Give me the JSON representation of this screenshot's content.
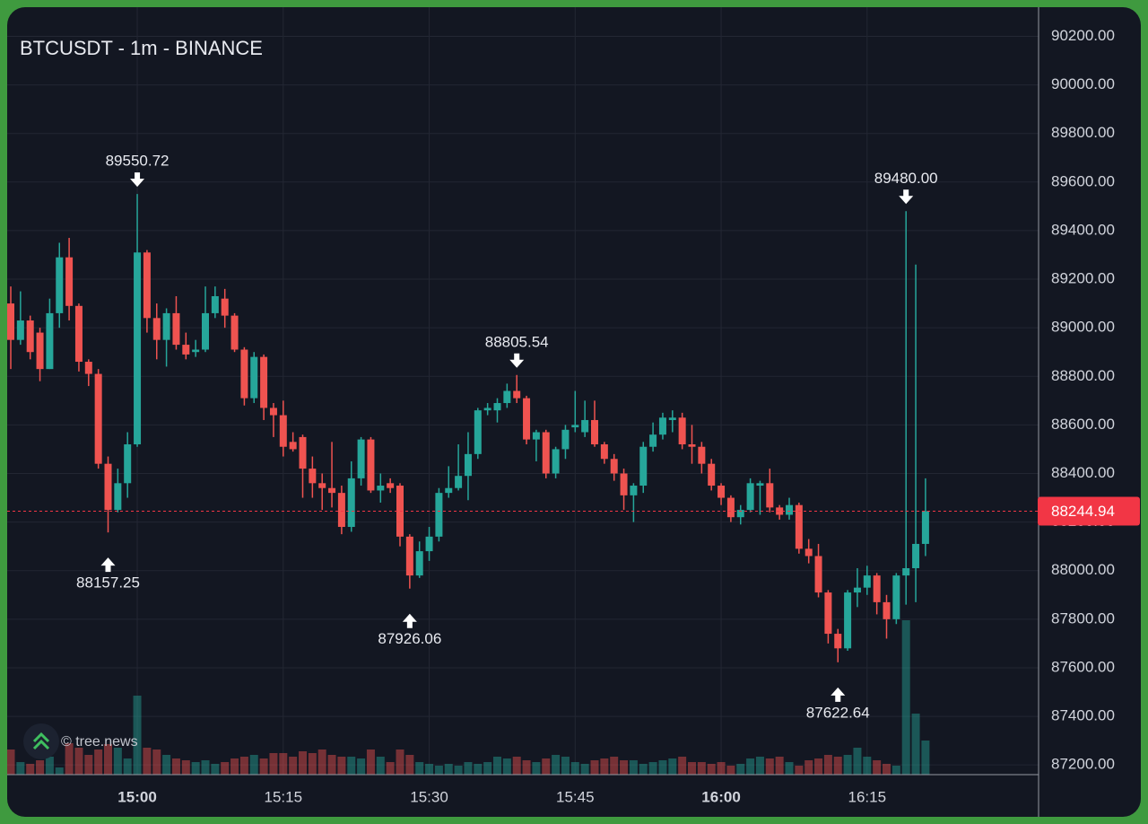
{
  "chart_data": {
    "type": "candlestick",
    "title": "BTCUSDT - 1m - BINANCE",
    "watermark": "© tree.news",
    "x": [
      "14:47",
      "14:48",
      "14:49",
      "14:50",
      "14:51",
      "14:52",
      "14:53",
      "14:54",
      "14:55",
      "14:56",
      "14:57",
      "14:58",
      "14:59",
      "15:00",
      "15:01",
      "15:02",
      "15:03",
      "15:04",
      "15:05",
      "15:06",
      "15:07",
      "15:08",
      "15:09",
      "15:10",
      "15:11",
      "15:12",
      "15:13",
      "15:14",
      "15:15",
      "15:16",
      "15:17",
      "15:18",
      "15:19",
      "15:20",
      "15:21",
      "15:22",
      "15:23",
      "15:24",
      "15:25",
      "15:26",
      "15:27",
      "15:28",
      "15:29",
      "15:30",
      "15:31",
      "15:32",
      "15:33",
      "15:34",
      "15:35",
      "15:36",
      "15:37",
      "15:38",
      "15:39",
      "15:40",
      "15:41",
      "15:42",
      "15:43",
      "15:44",
      "15:45",
      "15:46",
      "15:47",
      "15:48",
      "15:49",
      "15:50",
      "15:51",
      "15:52",
      "15:53",
      "15:54",
      "15:55",
      "15:56",
      "15:57",
      "15:58",
      "15:59",
      "16:00",
      "16:01",
      "16:02",
      "16:03",
      "16:04",
      "16:05",
      "16:06",
      "16:07",
      "16:08",
      "16:09",
      "16:10",
      "16:11",
      "16:12",
      "16:13",
      "16:14",
      "16:15",
      "16:16",
      "16:17",
      "16:18",
      "16:19",
      "16:20",
      "16:21"
    ],
    "open": [
      89100,
      88950,
      89030,
      88980,
      88830,
      89060,
      89290,
      89090,
      88860,
      88810,
      88440,
      88250,
      88360,
      88520,
      89310,
      89040,
      88950,
      89060,
      88930,
      88900,
      88910,
      89060,
      89120,
      89050,
      88910,
      88710,
      88880,
      88670,
      88640,
      88530,
      88550,
      88420,
      88360,
      88340,
      88320,
      88180,
      88380,
      88540,
      88330,
      88360,
      88350,
      88140,
      87980,
      88080,
      88140,
      88320,
      88340,
      88390,
      88480,
      88660,
      88660,
      88690,
      88740,
      88710,
      88540,
      88570,
      88400,
      88500,
      88590,
      88570,
      88620,
      88520,
      88460,
      88400,
      88310,
      88350,
      88510,
      88560,
      88620,
      88630,
      88520,
      88510,
      88440,
      88350,
      88300,
      88220,
      88250,
      88350,
      88360,
      88260,
      88230,
      88270,
      88090,
      88060,
      87910,
      87740,
      87680,
      87910,
      87930,
      87980,
      87870,
      87800,
      87980,
      88010,
      88110
    ],
    "high": [
      89170,
      89150,
      89050,
      89000,
      89120,
      89350,
      89370,
      89100,
      88870,
      88830,
      88470,
      88420,
      88570,
      89550.72,
      89320,
      89100,
      89080,
      89130,
      88980,
      88950,
      89170,
      89170,
      89160,
      89060,
      88920,
      88900,
      88890,
      88690,
      88700,
      88570,
      88560,
      88470,
      88400,
      88530,
      88350,
      88450,
      88550,
      88550,
      88400,
      88380,
      88360,
      88150,
      88120,
      88180,
      88340,
      88430,
      88520,
      88570,
      88670,
      88690,
      88710,
      88770,
      88805.54,
      88720,
      88580,
      88580,
      88510,
      88600,
      88740,
      88700,
      88700,
      88530,
      88480,
      88420,
      88360,
      88530,
      88610,
      88650,
      88660,
      88650,
      88600,
      88530,
      88460,
      88360,
      88310,
      88270,
      88380,
      88370,
      88420,
      88270,
      88300,
      88280,
      88130,
      88110,
      87920,
      87760,
      87920,
      88010,
      88020,
      87990,
      87900,
      87990,
      89480,
      89260,
      88380
    ],
    "low": [
      88830,
      88930,
      88870,
      88780,
      88830,
      89000,
      89030,
      88820,
      88760,
      88420,
      88157.25,
      88240,
      88300,
      88510,
      88980,
      88870,
      88840,
      88910,
      88870,
      88880,
      88900,
      89040,
      89000,
      88900,
      88680,
      88690,
      88620,
      88550,
      88470,
      88490,
      88300,
      88300,
      88250,
      88260,
      88150,
      88160,
      88350,
      88320,
      88280,
      88320,
      88100,
      87926.06,
      87970,
      88040,
      88120,
      88300,
      88330,
      88290,
      88460,
      88640,
      88610,
      88670,
      88690,
      88520,
      88450,
      88380,
      88380,
      88460,
      88570,
      88550,
      88510,
      88440,
      88370,
      88250,
      88200,
      88320,
      88490,
      88540,
      88570,
      88500,
      88440,
      88400,
      88330,
      88270,
      88200,
      88190,
      88240,
      88230,
      88240,
      88210,
      88210,
      88070,
      88030,
      87890,
      87700,
      87622.64,
      87670,
      87850,
      87900,
      87820,
      87720,
      87780,
      87860,
      87870,
      88060
    ],
    "close": [
      88950,
      89030,
      88900,
      88830,
      89060,
      89290,
      89090,
      88860,
      88810,
      88440,
      88250,
      88360,
      88520,
      89310,
      89040,
      88950,
      89060,
      88930,
      88890,
      88910,
      89060,
      89130,
      89050,
      88910,
      88710,
      88880,
      88670,
      88640,
      88510,
      88500,
      88420,
      88360,
      88340,
      88320,
      88180,
      88380,
      88540,
      88330,
      88350,
      88340,
      88140,
      87980,
      88080,
      88140,
      88320,
      88340,
      88390,
      88480,
      88660,
      88670,
      88690,
      88740,
      88710,
      88540,
      88570,
      88400,
      88500,
      88580,
      88600,
      88620,
      88520,
      88460,
      88400,
      88310,
      88350,
      88510,
      88560,
      88630,
      88630,
      88520,
      88510,
      88440,
      88350,
      88300,
      88220,
      88250,
      88360,
      88360,
      88260,
      88230,
      88270,
      88090,
      88060,
      87910,
      87740,
      87680,
      87910,
      87930,
      87980,
      87870,
      87800,
      87980,
      88010,
      88110,
      88244.94
    ],
    "volume": [
      28,
      14,
      12,
      16,
      20,
      8,
      35,
      30,
      22,
      28,
      34,
      30,
      18,
      88,
      30,
      28,
      22,
      18,
      16,
      14,
      16,
      12,
      14,
      18,
      20,
      22,
      18,
      24,
      24,
      20,
      26,
      24,
      28,
      22,
      20,
      20,
      18,
      28,
      20,
      14,
      28,
      22,
      14,
      12,
      10,
      12,
      10,
      14,
      12,
      14,
      20,
      18,
      20,
      16,
      14,
      18,
      22,
      20,
      14,
      12,
      16,
      18,
      20,
      16,
      16,
      12,
      14,
      16,
      18,
      20,
      14,
      14,
      12,
      14,
      10,
      12,
      18,
      20,
      18,
      20,
      14,
      10,
      16,
      18,
      22,
      20,
      22,
      30,
      20,
      16,
      12,
      10,
      172,
      68,
      38
    ],
    "up_color": "#26a69a",
    "down_color": "#ef5350",
    "price_line_color": "#f23645",
    "ylim": [
      87160,
      90320
    ],
    "yticks": [
      {
        "value": 87200,
        "label": "87200.00"
      },
      {
        "value": 87400,
        "label": "87400.00"
      },
      {
        "value": 87600,
        "label": "87600.00"
      },
      {
        "value": 87800,
        "label": "87800.00"
      },
      {
        "value": 88000,
        "label": "88000.00"
      },
      {
        "value": 88200,
        "label": "88200.00"
      },
      {
        "value": 88400,
        "label": "88400.00"
      },
      {
        "value": 88600,
        "label": "88600.00"
      },
      {
        "value": 88800,
        "label": "88800.00"
      },
      {
        "value": 89000,
        "label": "89000.00"
      },
      {
        "value": 89200,
        "label": "89200.00"
      },
      {
        "value": 89400,
        "label": "89400.00"
      },
      {
        "value": 89600,
        "label": "89600.00"
      },
      {
        "value": 89800,
        "label": "89800.00"
      },
      {
        "value": 90000,
        "label": "90000.00"
      },
      {
        "value": 90200,
        "label": "90200.00"
      }
    ],
    "xticks": [
      "15:00",
      "15:15",
      "15:30",
      "15:45",
      "16:00",
      "16:15"
    ],
    "grid": true,
    "annotations": [
      {
        "x": "15:00",
        "label": "89550.72",
        "at": "high"
      },
      {
        "x": "14:57",
        "label": "88157.25",
        "at": "low"
      },
      {
        "x": "15:39",
        "label": "88805.54",
        "at": "high"
      },
      {
        "x": "15:28",
        "label": "87926.06",
        "at": "low"
      },
      {
        "x": "16:19",
        "label": "89480.00",
        "at": "high"
      },
      {
        "x": "16:12",
        "label": "87622.64",
        "at": "low"
      }
    ]
  }
}
